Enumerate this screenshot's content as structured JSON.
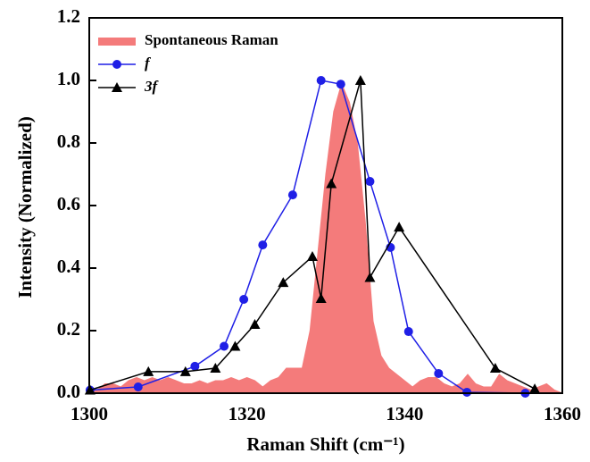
{
  "chart_data": {
    "type": "line",
    "xlabel": "Raman Shift (cm⁻¹)",
    "ylabel": "Intensity (Normalized)",
    "xlim": [
      1300,
      1360
    ],
    "xticks": [
      1300,
      1320,
      1340,
      1360
    ],
    "ylim": [
      0,
      1.2
    ],
    "yticks": [
      {
        "value": 0,
        "label": "0.0"
      },
      {
        "value": 0.2,
        "label": "0.2"
      },
      {
        "value": 0.4,
        "label": "0.4"
      },
      {
        "value": 0.6,
        "label": "0.6"
      },
      {
        "value": 0.8,
        "label": "0.8"
      },
      {
        "value": 1.0,
        "label": "1.0"
      },
      {
        "value": 1.2,
        "label": "1.2"
      }
    ],
    "legend": "upper left",
    "series": [
      {
        "name": "Spontaneous Raman",
        "style": "area",
        "color": "#f47b7b",
        "x": [
          1300,
          1301,
          1302,
          1303,
          1304,
          1305,
          1306,
          1307,
          1308,
          1309,
          1310,
          1311,
          1312,
          1313,
          1314,
          1315,
          1316,
          1317,
          1318,
          1319,
          1320,
          1321,
          1322,
          1323,
          1324,
          1325,
          1326,
          1327,
          1328,
          1329,
          1330,
          1331,
          1332,
          1333,
          1334,
          1335,
          1336,
          1337,
          1338,
          1339,
          1340,
          1341,
          1342,
          1343,
          1344,
          1345,
          1346,
          1347,
          1348,
          1349,
          1350,
          1351,
          1352,
          1353,
          1354,
          1355,
          1356,
          1357,
          1358,
          1359,
          1360
        ],
        "values": [
          0.0,
          0.01,
          0.03,
          0.03,
          0.02,
          0.04,
          0.05,
          0.04,
          0.05,
          0.04,
          0.05,
          0.04,
          0.03,
          0.03,
          0.04,
          0.03,
          0.04,
          0.04,
          0.05,
          0.04,
          0.05,
          0.04,
          0.02,
          0.04,
          0.05,
          0.08,
          0.08,
          0.08,
          0.2,
          0.45,
          0.7,
          0.9,
          0.99,
          0.93,
          0.8,
          0.55,
          0.23,
          0.12,
          0.08,
          0.06,
          0.04,
          0.02,
          0.04,
          0.05,
          0.05,
          0.03,
          0.02,
          0.03,
          0.06,
          0.03,
          0.02,
          0.02,
          0.06,
          0.04,
          0.03,
          0.02,
          0.01,
          0.02,
          0.03,
          0.01,
          0.0
        ]
      },
      {
        "name": "f",
        "style": "line",
        "marker": "circle",
        "color": "#1f1fe6",
        "x": [
          1300.1,
          1306.2,
          1313.4,
          1317.1,
          1319.6,
          1322.0,
          1325.8,
          1329.4,
          1331.9,
          1335.6,
          1338.2,
          1340.5,
          1344.3,
          1347.9,
          1355.3
        ],
        "values": [
          0.01,
          0.02,
          0.086,
          0.15,
          0.3,
          0.474,
          0.634,
          1.0,
          0.988,
          0.677,
          0.466,
          0.197,
          0.063,
          0.003,
          0.0
        ]
      },
      {
        "name": "3f",
        "style": "line",
        "marker": "triangle",
        "color": "#000000",
        "x": [
          1300.1,
          1307.5,
          1312.2,
          1316.0,
          1318.5,
          1321.0,
          1324.6,
          1328.3,
          1329.4,
          1330.7,
          1334.4,
          1335.6,
          1339.3,
          1351.5,
          1356.5
        ],
        "values": [
          0.01,
          0.069,
          0.069,
          0.08,
          0.15,
          0.22,
          0.354,
          0.437,
          0.303,
          0.67,
          1.0,
          0.37,
          0.531,
          0.08,
          0.014
        ]
      }
    ]
  }
}
